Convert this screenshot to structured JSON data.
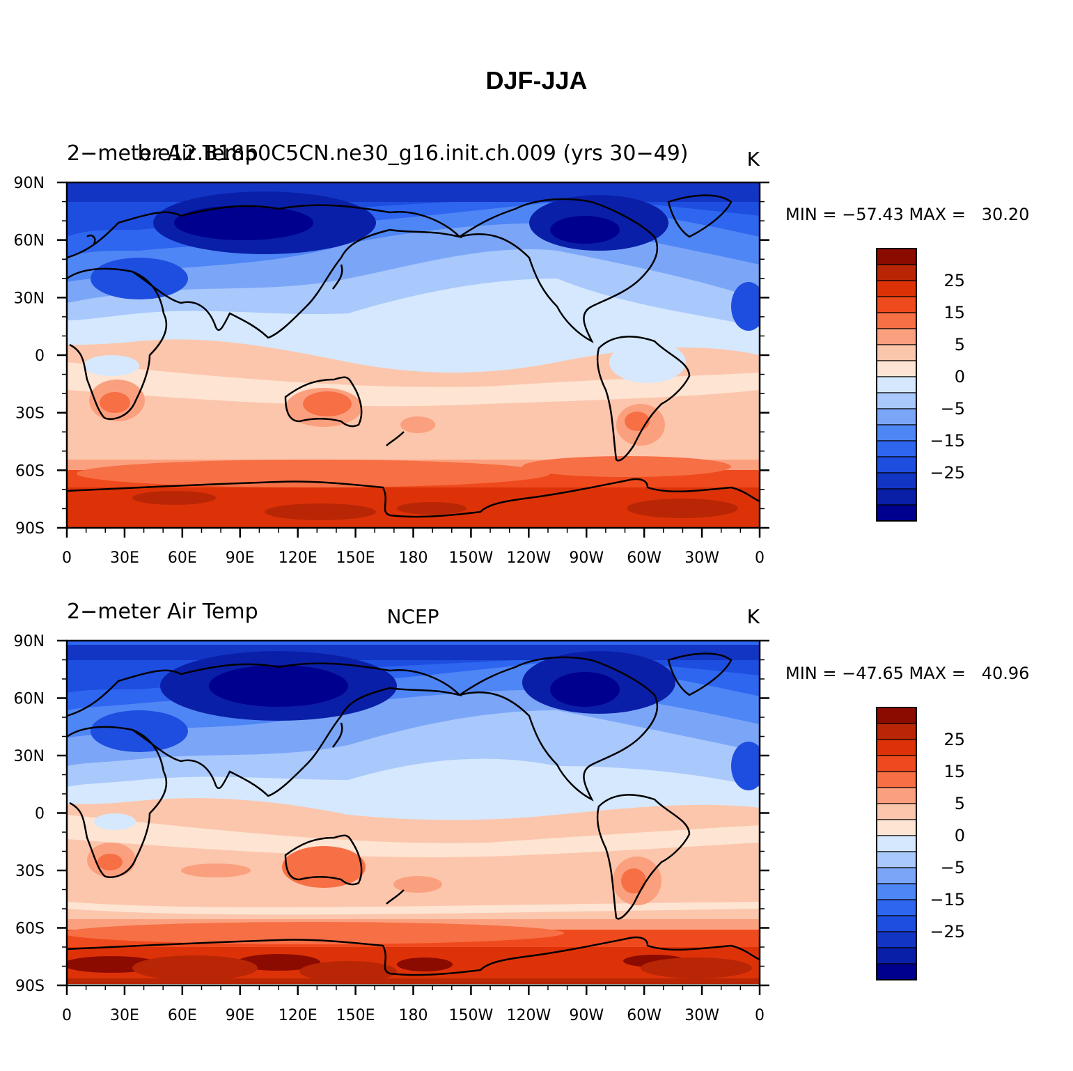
{
  "title": "DJF-JJA",
  "colors": {
    "blue_1": "#00008f",
    "blue_2": "#0a1fa8",
    "blue_3": "#1335c4",
    "blue_4": "#1e4ee0",
    "blue_5": "#2e66f0",
    "blue_6": "#4f86f5",
    "blue_7": "#7ba6f8",
    "blue_8": "#a9c8fb",
    "blue_9": "#d5e8fd",
    "red_1": "#fde4d3",
    "red_2": "#fcc6ac",
    "red_3": "#fba07e",
    "red_4": "#f76f45",
    "red_5": "#ef4a1d",
    "red_6": "#dd3208",
    "red_7": "#b92605",
    "red_8": "#8c0b00",
    "land_outline": "#000000"
  },
  "colorbar": {
    "labels": [
      "25",
      "15",
      "5",
      "0",
      "−5",
      "−15",
      "−25"
    ],
    "levels": [
      -30,
      -25,
      -20,
      -15,
      -10,
      -5,
      0,
      5,
      10,
      15,
      20,
      25,
      30
    ]
  },
  "axes": {
    "lat_labels": [
      "90N",
      "60N",
      "30N",
      "0",
      "30S",
      "60S",
      "90S"
    ],
    "lon_labels": [
      "0",
      "30E",
      "60E",
      "90E",
      "120E",
      "150E",
      "180",
      "150W",
      "120W",
      "90W",
      "60W",
      "30W",
      "0"
    ]
  },
  "panels": [
    {
      "left_title": "2−meter Air Temp",
      "center_title": "b.e12.B1850C5CN.ne30_g16.init.ch.009 (yrs 30−49)",
      "units": "K",
      "stats": "MIN = −57.43 MAX =   30.20"
    },
    {
      "left_title": "2−meter Air Temp",
      "center_title": "NCEP",
      "units": "K",
      "stats": "MIN = −47.65 MAX =   40.96"
    }
  ]
}
